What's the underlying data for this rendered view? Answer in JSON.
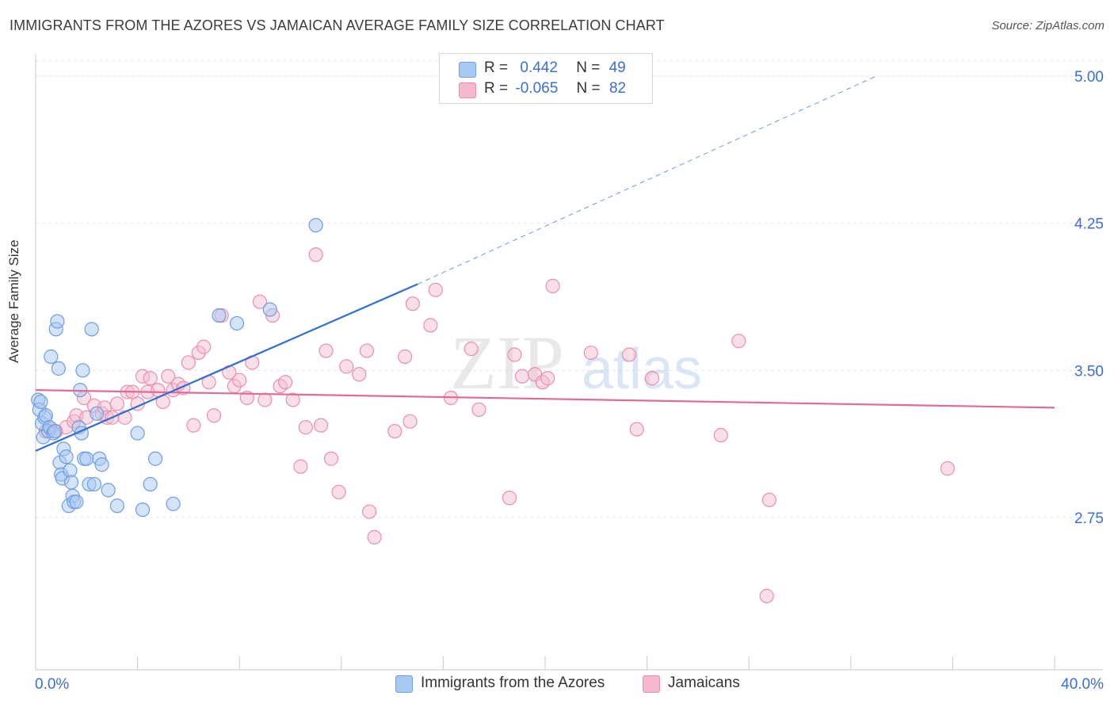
{
  "header": {
    "title": "IMMIGRANTS FROM THE AZORES VS JAMAICAN AVERAGE FAMILY SIZE CORRELATION CHART",
    "source": "Source: ZipAtlas.com"
  },
  "legend": {
    "row1": {
      "r_label": "R =",
      "r_value": "0.442",
      "n_label": "N =",
      "n_value": "49"
    },
    "row2": {
      "r_label": "R =",
      "r_value": "-0.065",
      "n_label": "N =",
      "n_value": "82"
    }
  },
  "bottom_legend": {
    "series1": "Immigrants from the Azores",
    "series2": "Jamaicans"
  },
  "colors": {
    "blue_fill": "#a8c8f4",
    "blue_stroke": "#6f9de0",
    "blue_line": "#2f6fd0",
    "pink_fill": "#f6b8cc",
    "pink_stroke": "#e88fae",
    "pink_line": "#e26b95",
    "tick_label": "#3b6fd1",
    "grid": "#e3e3e3"
  },
  "watermark": {
    "zip": "ZIP",
    "atlas": "atlas"
  },
  "chart_data": {
    "type": "scatter",
    "title": "IMMIGRANTS FROM THE AZORES VS JAMAICAN AVERAGE FAMILY SIZE CORRELATION CHART",
    "xlabel": "",
    "ylabel": "Average Family Size",
    "xlim": [
      0,
      40
    ],
    "ylim": [
      2.2,
      5.1
    ],
    "x_tick_labels": [
      "0.0%",
      "40.0%"
    ],
    "y_ticks": [
      2.75,
      3.5,
      4.25,
      5.0
    ],
    "y_tick_labels": [
      "2.75",
      "3.50",
      "4.25",
      "5.00"
    ],
    "grid": true,
    "legend_placement": "top-center",
    "series": [
      {
        "name": "Immigrants from the Azores",
        "r": 0.442,
        "n": 49,
        "trend": {
          "x": [
            0.0,
            15.0
          ],
          "y": [
            3.09,
            3.94
          ],
          "dashed_extension_to": [
            33.0,
            5.0
          ]
        },
        "points": [
          [
            0.1,
            3.35
          ],
          [
            0.15,
            3.3
          ],
          [
            0.2,
            3.34
          ],
          [
            0.25,
            3.23
          ],
          [
            0.3,
            3.16
          ],
          [
            0.35,
            3.26
          ],
          [
            0.4,
            3.27
          ],
          [
            0.5,
            3.19
          ],
          [
            0.55,
            3.21
          ],
          [
            0.6,
            3.57
          ],
          [
            0.7,
            3.18
          ],
          [
            0.75,
            3.19
          ],
          [
            0.8,
            3.71
          ],
          [
            0.85,
            3.75
          ],
          [
            0.9,
            3.51
          ],
          [
            0.95,
            3.03
          ],
          [
            1.0,
            2.97
          ],
          [
            1.05,
            2.95
          ],
          [
            1.1,
            3.1
          ],
          [
            1.2,
            3.06
          ],
          [
            1.3,
            2.81
          ],
          [
            1.35,
            2.99
          ],
          [
            1.4,
            2.93
          ],
          [
            1.45,
            2.86
          ],
          [
            1.5,
            2.83
          ],
          [
            1.6,
            2.83
          ],
          [
            1.7,
            3.21
          ],
          [
            1.75,
            3.4
          ],
          [
            1.8,
            3.18
          ],
          [
            1.85,
            3.5
          ],
          [
            1.9,
            3.05
          ],
          [
            2.0,
            3.05
          ],
          [
            2.1,
            2.92
          ],
          [
            2.2,
            3.71
          ],
          [
            2.3,
            2.92
          ],
          [
            2.4,
            3.28
          ],
          [
            2.5,
            3.05
          ],
          [
            2.6,
            3.02
          ],
          [
            2.85,
            2.89
          ],
          [
            3.2,
            2.81
          ],
          [
            4.0,
            3.18
          ],
          [
            4.2,
            2.79
          ],
          [
            4.5,
            2.92
          ],
          [
            4.7,
            3.05
          ],
          [
            5.4,
            2.82
          ],
          [
            7.2,
            3.78
          ],
          [
            7.9,
            3.74
          ],
          [
            9.2,
            3.81
          ],
          [
            11.0,
            4.24
          ]
        ]
      },
      {
        "name": "Jamaicans",
        "r": -0.065,
        "n": 82,
        "trend": {
          "x": [
            0.0,
            40.0
          ],
          "y": [
            3.4,
            3.31
          ]
        },
        "points": [
          [
            0.4,
            3.19
          ],
          [
            0.6,
            3.2
          ],
          [
            0.8,
            3.19
          ],
          [
            1.2,
            3.21
          ],
          [
            1.5,
            3.24
          ],
          [
            1.6,
            3.27
          ],
          [
            1.9,
            3.36
          ],
          [
            2.0,
            3.26
          ],
          [
            2.3,
            3.32
          ],
          [
            2.6,
            3.28
          ],
          [
            2.7,
            3.31
          ],
          [
            2.8,
            3.26
          ],
          [
            3.0,
            3.26
          ],
          [
            3.2,
            3.33
          ],
          [
            3.5,
            3.26
          ],
          [
            3.6,
            3.39
          ],
          [
            3.8,
            3.39
          ],
          [
            4.0,
            3.33
          ],
          [
            4.2,
            3.47
          ],
          [
            4.4,
            3.39
          ],
          [
            4.5,
            3.46
          ],
          [
            4.8,
            3.4
          ],
          [
            5.0,
            3.34
          ],
          [
            5.2,
            3.47
          ],
          [
            5.4,
            3.4
          ],
          [
            5.6,
            3.43
          ],
          [
            5.8,
            3.41
          ],
          [
            6.0,
            3.54
          ],
          [
            6.2,
            3.22
          ],
          [
            6.4,
            3.59
          ],
          [
            6.6,
            3.62
          ],
          [
            6.8,
            3.44
          ],
          [
            7.0,
            3.27
          ],
          [
            7.3,
            3.78
          ],
          [
            7.6,
            3.49
          ],
          [
            7.8,
            3.42
          ],
          [
            8.0,
            3.45
          ],
          [
            8.3,
            3.36
          ],
          [
            8.5,
            3.54
          ],
          [
            8.8,
            3.85
          ],
          [
            9.0,
            3.35
          ],
          [
            9.3,
            3.78
          ],
          [
            9.6,
            3.42
          ],
          [
            9.8,
            3.44
          ],
          [
            10.1,
            3.35
          ],
          [
            10.4,
            3.01
          ],
          [
            10.6,
            3.21
          ],
          [
            11.0,
            4.09
          ],
          [
            11.2,
            3.22
          ],
          [
            11.4,
            3.6
          ],
          [
            11.6,
            3.05
          ],
          [
            11.9,
            2.88
          ],
          [
            12.2,
            3.52
          ],
          [
            12.7,
            3.48
          ],
          [
            13.0,
            3.6
          ],
          [
            13.1,
            2.78
          ],
          [
            13.3,
            2.65
          ],
          [
            14.1,
            3.19
          ],
          [
            14.5,
            3.57
          ],
          [
            14.7,
            3.24
          ],
          [
            14.8,
            3.84
          ],
          [
            15.5,
            3.73
          ],
          [
            15.7,
            3.91
          ],
          [
            16.3,
            3.36
          ],
          [
            17.1,
            3.61
          ],
          [
            17.4,
            3.3
          ],
          [
            18.6,
            2.85
          ],
          [
            18.8,
            3.58
          ],
          [
            19.1,
            3.47
          ],
          [
            19.6,
            3.48
          ],
          [
            19.9,
            3.44
          ],
          [
            20.1,
            3.46
          ],
          [
            20.3,
            3.93
          ],
          [
            21.8,
            3.59
          ],
          [
            23.3,
            3.58
          ],
          [
            23.6,
            3.2
          ],
          [
            24.2,
            3.46
          ],
          [
            26.9,
            3.17
          ],
          [
            27.6,
            3.65
          ],
          [
            28.7,
            2.35
          ],
          [
            28.8,
            2.84
          ],
          [
            35.8,
            3.0
          ]
        ]
      }
    ]
  }
}
